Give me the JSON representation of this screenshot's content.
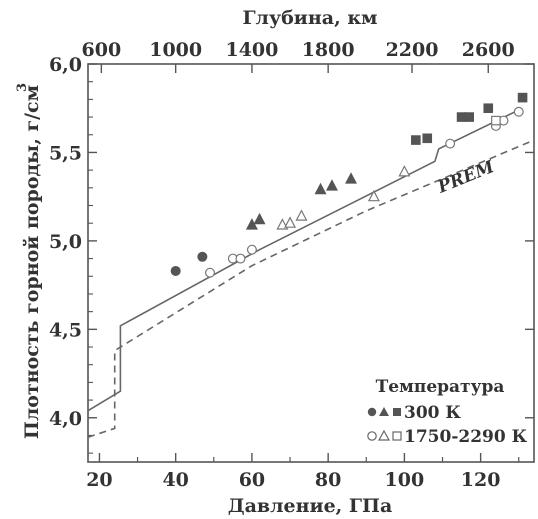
{
  "chart_data": {
    "type": "scatter",
    "xlabel": "Давление, ГПа",
    "ylabel": "Плотность горной породы, г/см",
    "ylabel_sup": "3",
    "x2label": "Глубина, км",
    "xlim": [
      17,
      134
    ],
    "ylim": [
      3.75,
      6.0
    ],
    "x_ticks": [
      20,
      40,
      60,
      80,
      100,
      120
    ],
    "y_ticks": [
      4.0,
      4.5,
      5.0,
      5.5,
      6.0
    ],
    "y_tick_labels": [
      "4,0",
      "4,5",
      "5,0",
      "5,5",
      "6,0"
    ],
    "x2_ticks": [
      {
        "label": "600",
        "pressure": 20.5
      },
      {
        "label": "1000",
        "pressure": 40.0
      },
      {
        "label": "1400",
        "pressure": 60.0
      },
      {
        "label": "1800",
        "pressure": 80.0
      },
      {
        "label": "2200",
        "pressure": 102.0
      },
      {
        "label": "2600",
        "pressure": 122.0
      }
    ],
    "legend": {
      "title": "Температура",
      "entries": [
        "300 К",
        "1750-2290 К"
      ],
      "position": "bottom-right"
    },
    "lines": [
      {
        "name": "PREM",
        "style": "dashed",
        "points": [
          [
            17,
            3.89
          ],
          [
            24,
            3.94
          ],
          [
            24,
            4.38
          ],
          [
            60,
            4.86
          ],
          [
            90,
            5.17
          ],
          [
            134,
            5.57
          ]
        ]
      },
      {
        "style": "solid",
        "points": [
          [
            17,
            4.04
          ],
          [
            25.5,
            4.15
          ],
          [
            25.5,
            4.52
          ],
          [
            62,
            4.95
          ],
          [
            108,
            5.45
          ],
          [
            109,
            5.52
          ],
          [
            130,
            5.74
          ]
        ]
      }
    ],
    "series": [
      {
        "temperature": "300 К",
        "marker": "circle",
        "filled": true,
        "points": [
          [
            40,
            4.83
          ],
          [
            47,
            4.91
          ]
        ]
      },
      {
        "temperature": "300 К",
        "marker": "triangle",
        "filled": true,
        "points": [
          [
            60,
            5.09
          ],
          [
            62,
            5.12
          ],
          [
            78,
            5.29
          ],
          [
            81,
            5.31
          ],
          [
            86,
            5.35
          ]
        ]
      },
      {
        "temperature": "300 К",
        "marker": "square",
        "filled": true,
        "points": [
          [
            103,
            5.57
          ],
          [
            106,
            5.58
          ],
          [
            115,
            5.7
          ],
          [
            117,
            5.7
          ],
          [
            122,
            5.75
          ],
          [
            131,
            5.81
          ]
        ]
      },
      {
        "temperature": "1750-2290 К",
        "marker": "circle",
        "filled": false,
        "points": [
          [
            49,
            4.82
          ],
          [
            55,
            4.9
          ],
          [
            57,
            4.9
          ],
          [
            60,
            4.95
          ],
          [
            112,
            5.55
          ],
          [
            124,
            5.65
          ],
          [
            126,
            5.68
          ],
          [
            130,
            5.73
          ]
        ]
      },
      {
        "temperature": "1750-2290 К",
        "marker": "triangle",
        "filled": false,
        "points": [
          [
            68,
            5.09
          ],
          [
            70,
            5.1
          ],
          [
            73,
            5.14
          ],
          [
            92,
            5.25
          ],
          [
            100,
            5.39
          ]
        ]
      },
      {
        "temperature": "1750-2290 К",
        "marker": "square",
        "filled": false,
        "points": [
          [
            124,
            5.68
          ]
        ]
      }
    ],
    "grid": false
  }
}
